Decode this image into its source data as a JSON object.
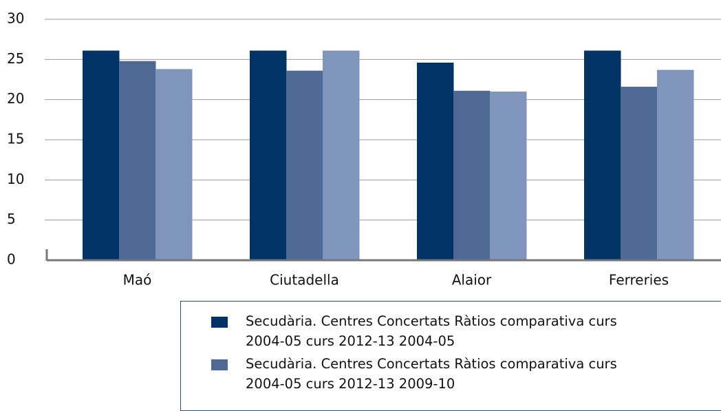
{
  "chart_data": {
    "type": "bar",
    "categories": [
      "Maó",
      "Ciutadella",
      "Alaior",
      "Ferreries"
    ],
    "series": [
      {
        "name": "Secudària. Centres Concertats Ràtios comparativa curs 2004-05 curs 2012-13 2004-05",
        "color": "#003366",
        "values": [
          26.1,
          26.1,
          24.6,
          26.1
        ]
      },
      {
        "name": "Secudària. Centres Concertats Ràtios comparativa curs 2004-05 curs 2012-13 2009-10",
        "color": "#4f6995",
        "values": [
          24.8,
          23.6,
          21.1,
          21.6
        ]
      },
      {
        "color": "#7f95bc",
        "values": [
          23.8,
          26.1,
          21.0,
          23.7
        ]
      }
    ],
    "ylim": [
      0,
      30
    ],
    "yticks": [
      0,
      5,
      10,
      15,
      20,
      25,
      30
    ],
    "grid": true
  }
}
